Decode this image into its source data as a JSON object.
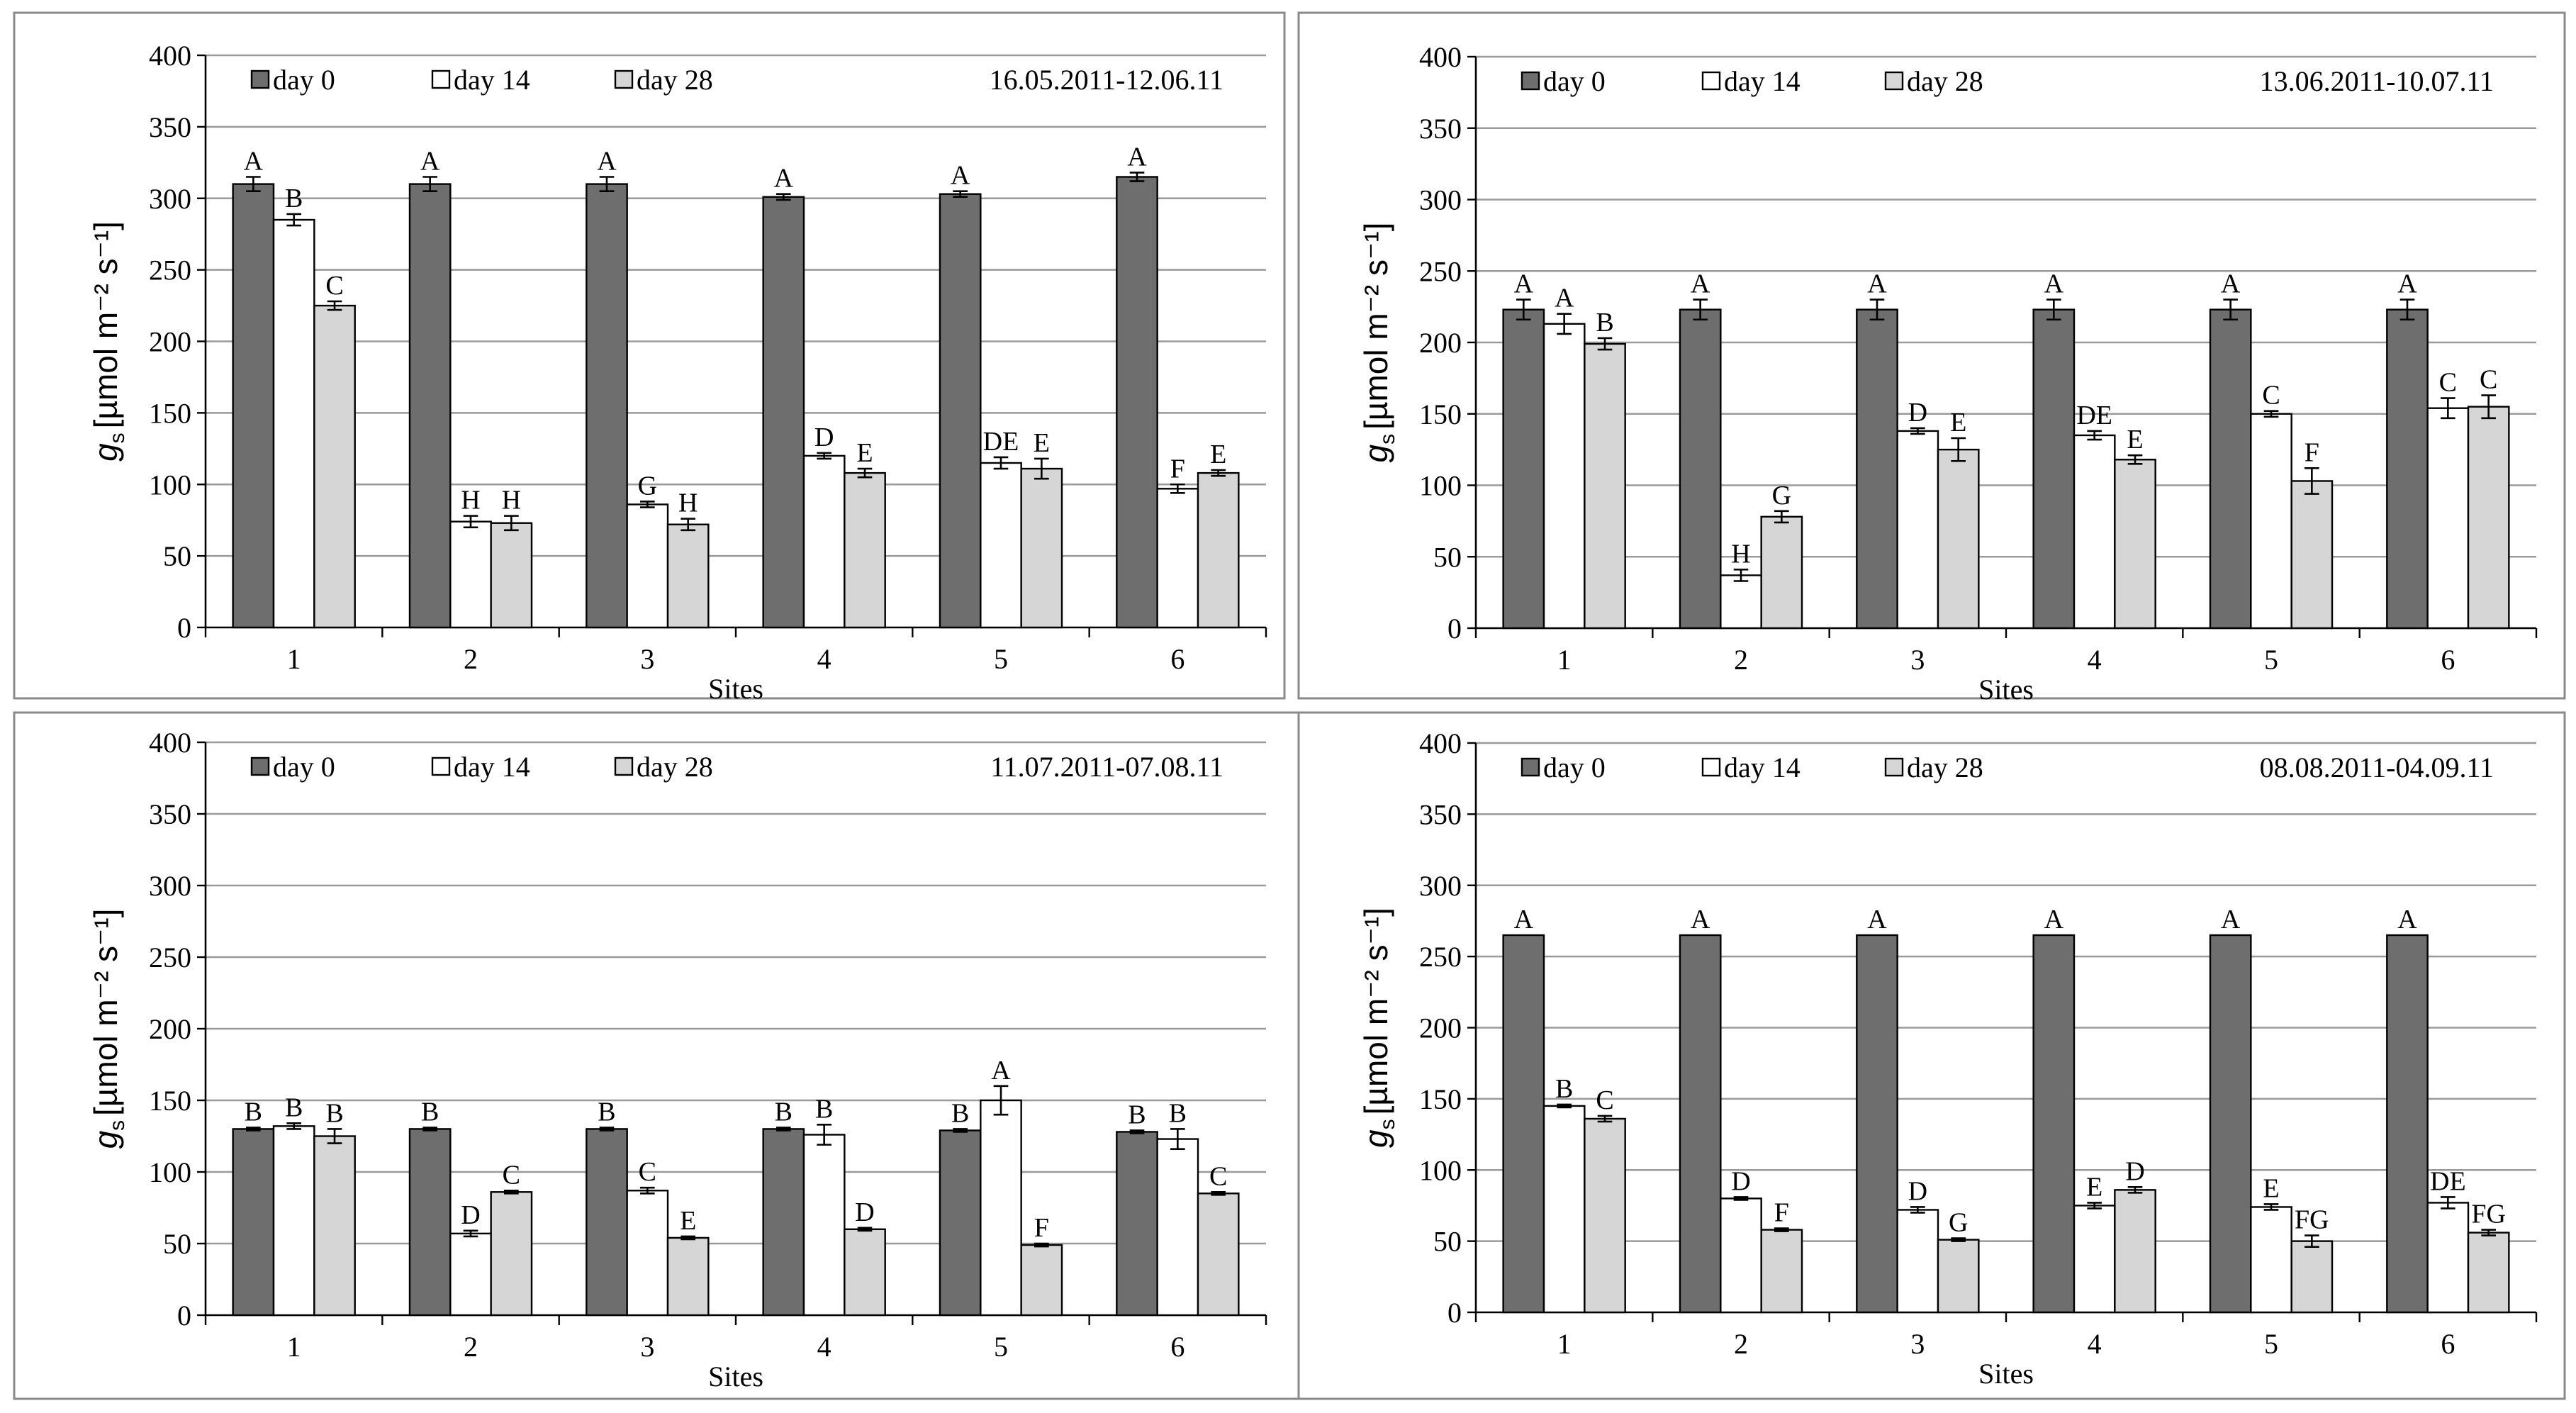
{
  "colors": {
    "day0": "#6e6e6e",
    "day14": "#ffffff",
    "day28": "#d6d6d6",
    "grid": "#9a9a9a",
    "border": "#8a8a8a"
  },
  "chart_data": [
    {
      "type": "bar",
      "period": "16.05.2011-12.06.11",
      "categories": [
        "1",
        "2",
        "3",
        "4",
        "5",
        "6"
      ],
      "xlabel": "Sites",
      "ylabel": "[µmol m⁻² s⁻¹]",
      "ylabel_symbol": "g",
      "ylabel_sub": "s",
      "ylim": [
        0,
        400
      ],
      "yticks": [
        0,
        50,
        100,
        150,
        200,
        250,
        300,
        350,
        400
      ],
      "series": [
        {
          "name": "day 0",
          "values": [
            310,
            310,
            310,
            301,
            303,
            315
          ],
          "errors": [
            5,
            5,
            5,
            2,
            2,
            3
          ],
          "letters": [
            "A",
            "A",
            "A",
            "A",
            "A",
            "A"
          ]
        },
        {
          "name": "day 14",
          "values": [
            285,
            74,
            86,
            120,
            115,
            97
          ],
          "errors": [
            4,
            4,
            2,
            2,
            4,
            3
          ],
          "letters": [
            "B",
            "H",
            "G",
            "D",
            "DE",
            "F"
          ]
        },
        {
          "name": "day 28",
          "values": [
            225,
            73,
            72,
            108,
            111,
            108
          ],
          "errors": [
            3,
            5,
            4,
            3,
            7,
            2
          ],
          "letters": [
            "C",
            "H",
            "H",
            "E",
            "E",
            "E"
          ]
        }
      ]
    },
    {
      "type": "bar",
      "period": "13.06.2011-10.07.11",
      "categories": [
        "1",
        "2",
        "3",
        "4",
        "5",
        "6"
      ],
      "xlabel": "Sites",
      "ylabel": "[µmol m⁻² s⁻¹]",
      "ylabel_symbol": "g",
      "ylabel_sub": "s",
      "ylim": [
        0,
        400
      ],
      "yticks": [
        0,
        50,
        100,
        150,
        200,
        250,
        300,
        350,
        400
      ],
      "series": [
        {
          "name": "day 0",
          "values": [
            223,
            223,
            223,
            223,
            223,
            223
          ],
          "errors": [
            7,
            7,
            7,
            7,
            7,
            7
          ],
          "letters": [
            "A",
            "A",
            "A",
            "A",
            "A",
            "A"
          ]
        },
        {
          "name": "day 14",
          "values": [
            213,
            37,
            138,
            135,
            150,
            154
          ],
          "errors": [
            7,
            4,
            2,
            3,
            2,
            7
          ],
          "letters": [
            "A",
            "H",
            "D",
            "DE",
            "C",
            "C"
          ]
        },
        {
          "name": "day 28",
          "values": [
            199,
            78,
            125,
            118,
            103,
            155
          ],
          "errors": [
            4,
            4,
            8,
            3,
            9,
            8
          ],
          "letters": [
            "B",
            "G",
            "E",
            "E",
            "F",
            "C"
          ]
        }
      ]
    },
    {
      "type": "bar",
      "period": "11.07.2011-07.08.11",
      "categories": [
        "1",
        "2",
        "3",
        "4",
        "5",
        "6"
      ],
      "xlabel": "Sites",
      "ylabel": "[µmol m⁻² s⁻¹]",
      "ylabel_symbol": "g",
      "ylabel_sub": "s",
      "ylim": [
        0,
        400
      ],
      "yticks": [
        0,
        50,
        100,
        150,
        200,
        250,
        300,
        350,
        400
      ],
      "series": [
        {
          "name": "day 0",
          "values": [
            130,
            130,
            130,
            130,
            129,
            128
          ],
          "errors": [
            1,
            1,
            1,
            1,
            1,
            1
          ],
          "letters": [
            "B",
            "B",
            "B",
            "B",
            "B",
            "B"
          ]
        },
        {
          "name": "day 14",
          "values": [
            132,
            57,
            87,
            126,
            150,
            123
          ],
          "errors": [
            2,
            2,
            2,
            7,
            10,
            7
          ],
          "letters": [
            "B",
            "D",
            "C",
            "B",
            "A",
            "B"
          ]
        },
        {
          "name": "day 28",
          "values": [
            125,
            86,
            54,
            60,
            49,
            85
          ],
          "errors": [
            5,
            1,
            1,
            1,
            1,
            1
          ],
          "letters": [
            "B",
            "C",
            "E",
            "D",
            "F",
            "C"
          ]
        }
      ]
    },
    {
      "type": "bar",
      "period": "08.08.2011-04.09.11",
      "categories": [
        "1",
        "2",
        "3",
        "4",
        "5",
        "6"
      ],
      "xlabel": "Sites",
      "ylabel": "[µmol m⁻² s⁻¹]",
      "ylabel_symbol": "g",
      "ylabel_sub": "s",
      "ylim": [
        0,
        400
      ],
      "yticks": [
        0,
        50,
        100,
        150,
        200,
        250,
        300,
        350,
        400
      ],
      "series": [
        {
          "name": "day 0",
          "values": [
            265,
            265,
            265,
            265,
            265,
            265
          ],
          "errors": [
            0,
            0,
            0,
            0,
            0,
            0
          ],
          "letters": [
            "A",
            "A",
            "A",
            "A",
            "A",
            "A"
          ]
        },
        {
          "name": "day 14",
          "values": [
            145,
            80,
            72,
            75,
            74,
            77
          ],
          "errors": [
            1,
            1,
            2,
            2,
            2,
            4
          ],
          "letters": [
            "B",
            "D",
            "D",
            "E",
            "E",
            "DE"
          ]
        },
        {
          "name": "day 28",
          "values": [
            136,
            58,
            51,
            86,
            50,
            56
          ],
          "errors": [
            2,
            1,
            1,
            2,
            4,
            2
          ],
          "letters": [
            "C",
            "F",
            "G",
            "D",
            "FG",
            "FG"
          ]
        }
      ]
    }
  ]
}
